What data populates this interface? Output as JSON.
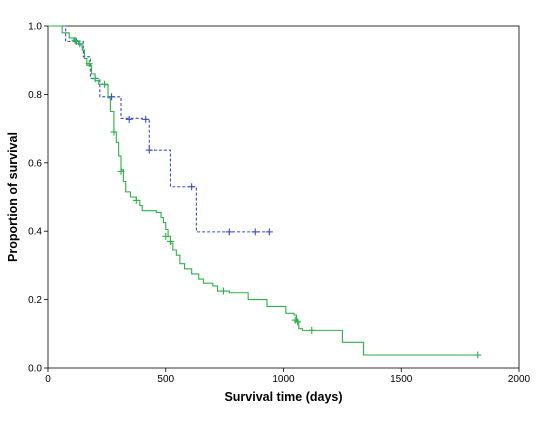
{
  "chart_data": {
    "type": "line",
    "subtype": "kaplan-meier step",
    "xlabel": "Survival time (days)",
    "ylabel": "Proportion of survival",
    "xlim": [
      0,
      2000
    ],
    "ylim": [
      0,
      1.0
    ],
    "x_ticks": [
      0,
      500,
      1000,
      1500,
      2000
    ],
    "x_tick_labels": [
      "0",
      "500",
      "1000",
      "1500",
      "2000"
    ],
    "y_ticks": [
      0.0,
      0.2,
      0.4,
      0.6,
      0.8,
      1.0
    ],
    "y_tick_labels": [
      "0.0",
      "0.2",
      "0.4",
      "0.6",
      "0.8",
      "1.0"
    ],
    "grid": false,
    "legend": "none",
    "series": [
      {
        "color": "#3a4fc4",
        "line_style": "dashed",
        "steps": [
          [
            0,
            1.0
          ],
          [
            75,
            0.955
          ],
          [
            150,
            0.91
          ],
          [
            180,
            0.847
          ],
          [
            220,
            0.793
          ],
          [
            310,
            0.73
          ],
          [
            400,
            0.727
          ],
          [
            430,
            0.637
          ],
          [
            520,
            0.53
          ],
          [
            630,
            0.398
          ],
          [
            940,
            0.398
          ]
        ],
        "censored": [
          [
            120,
            0.955
          ],
          [
            270,
            0.793
          ],
          [
            345,
            0.727
          ],
          [
            415,
            0.727
          ],
          [
            430,
            0.637
          ],
          [
            610,
            0.53
          ],
          [
            770,
            0.398
          ],
          [
            880,
            0.398
          ],
          [
            940,
            0.398
          ]
        ]
      },
      {
        "color": "#2db14a",
        "line_style": "solid",
        "steps": [
          [
            0,
            1.0
          ],
          [
            60,
            0.98
          ],
          [
            90,
            0.965
          ],
          [
            110,
            0.955
          ],
          [
            130,
            0.945
          ],
          [
            145,
            0.93
          ],
          [
            155,
            0.905
          ],
          [
            165,
            0.885
          ],
          [
            185,
            0.86
          ],
          [
            200,
            0.84
          ],
          [
            215,
            0.83
          ],
          [
            240,
            0.828
          ],
          [
            255,
            0.79
          ],
          [
            265,
            0.75
          ],
          [
            280,
            0.69
          ],
          [
            290,
            0.66
          ],
          [
            300,
            0.62
          ],
          [
            310,
            0.58
          ],
          [
            320,
            0.545
          ],
          [
            330,
            0.515
          ],
          [
            350,
            0.5
          ],
          [
            375,
            0.49
          ],
          [
            390,
            0.475
          ],
          [
            400,
            0.46
          ],
          [
            460,
            0.455
          ],
          [
            480,
            0.44
          ],
          [
            490,
            0.425
          ],
          [
            500,
            0.405
          ],
          [
            510,
            0.385
          ],
          [
            520,
            0.365
          ],
          [
            530,
            0.345
          ],
          [
            545,
            0.33
          ],
          [
            560,
            0.305
          ],
          [
            580,
            0.29
          ],
          [
            610,
            0.275
          ],
          [
            640,
            0.26
          ],
          [
            660,
            0.248
          ],
          [
            700,
            0.24
          ],
          [
            720,
            0.225
          ],
          [
            770,
            0.22
          ],
          [
            850,
            0.2
          ],
          [
            930,
            0.18
          ],
          [
            1010,
            0.16
          ],
          [
            1045,
            0.155
          ],
          [
            1055,
            0.135
          ],
          [
            1065,
            0.115
          ],
          [
            1080,
            0.11
          ],
          [
            1250,
            0.075
          ],
          [
            1340,
            0.038
          ],
          [
            1825,
            0.038
          ]
        ],
        "censored": [
          [
            115,
            0.958
          ],
          [
            135,
            0.948
          ],
          [
            175,
            0.89
          ],
          [
            200,
            0.846
          ],
          [
            240,
            0.83
          ],
          [
            280,
            0.69
          ],
          [
            310,
            0.575
          ],
          [
            375,
            0.49
          ],
          [
            500,
            0.385
          ],
          [
            520,
            0.37
          ],
          [
            745,
            0.225
          ],
          [
            1050,
            0.14
          ],
          [
            1060,
            0.135
          ],
          [
            1120,
            0.11
          ],
          [
            1825,
            0.038
          ]
        ]
      }
    ]
  }
}
